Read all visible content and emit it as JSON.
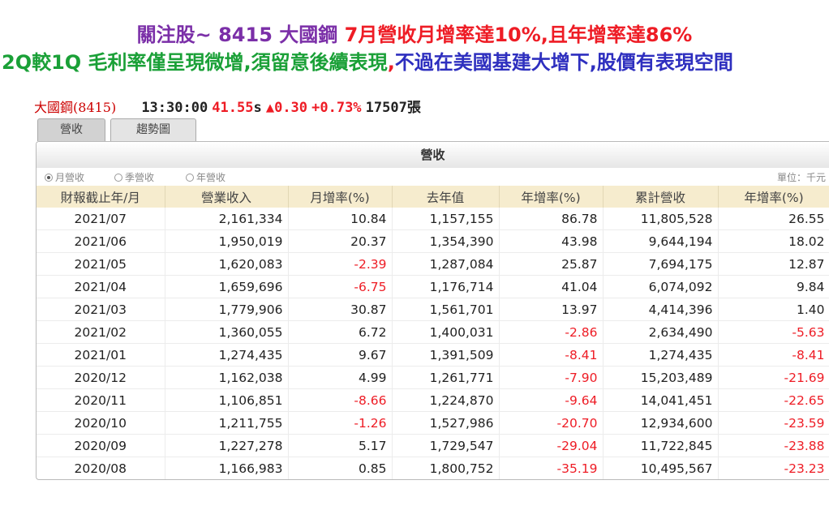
{
  "headline": {
    "line1": [
      {
        "text": "關注股~ 8415 大國鋼  ",
        "color": "purple"
      },
      {
        "text": "7月營收月增率達10%,且年增率達86%",
        "color": "red"
      }
    ],
    "line2": [
      {
        "text": "2Q較1Q 毛利率僅呈現微增,須留意後續表現",
        "color": "green"
      },
      {
        "text": ",",
        "color": "red"
      },
      {
        "text": "不過在美國基建大增下,股價有表現空間",
        "color": "blue"
      }
    ]
  },
  "quote": {
    "name": "大國鋼",
    "code": "(8415)",
    "time": "13:30:00",
    "price": "41.55",
    "price_flag": "s",
    "arrow": "▲",
    "change": "0.30",
    "change_pct": "+0.73%",
    "volume": "17507張"
  },
  "tabs": [
    {
      "label": "營收",
      "active": true
    },
    {
      "label": "趨勢圖",
      "active": false
    }
  ],
  "panel": {
    "title": "營收",
    "radio_options": [
      {
        "label": "月營收",
        "selected": true
      },
      {
        "label": "季營收",
        "selected": false
      },
      {
        "label": "年營收",
        "selected": false
      }
    ],
    "unit": "單位：千元"
  },
  "table": {
    "headers": [
      "財報截止年/月",
      "營業收入",
      "月增率(%)",
      "去年值",
      "年增率(%)",
      "累計營收",
      "年增率(%)"
    ],
    "rows": [
      [
        "2021/07",
        "2,161,334",
        "10.84",
        "1,157,155",
        "86.78",
        "11,805,528",
        "26.55"
      ],
      [
        "2021/06",
        "1,950,019",
        "20.37",
        "1,354,390",
        "43.98",
        "9,644,194",
        "18.02"
      ],
      [
        "2021/05",
        "1,620,083",
        "-2.39",
        "1,287,084",
        "25.87",
        "7,694,175",
        "12.87"
      ],
      [
        "2021/04",
        "1,659,696",
        "-6.75",
        "1,176,714",
        "41.04",
        "6,074,092",
        "9.84"
      ],
      [
        "2021/03",
        "1,779,906",
        "30.87",
        "1,561,701",
        "13.97",
        "4,414,396",
        "1.40"
      ],
      [
        "2021/02",
        "1,360,055",
        "6.72",
        "1,400,031",
        "-2.86",
        "2,634,490",
        "-5.63"
      ],
      [
        "2021/01",
        "1,274,435",
        "9.67",
        "1,391,509",
        "-8.41",
        "1,274,435",
        "-8.41"
      ],
      [
        "2020/12",
        "1,162,038",
        "4.99",
        "1,261,771",
        "-7.90",
        "15,203,489",
        "-21.69"
      ],
      [
        "2020/11",
        "1,106,851",
        "-8.66",
        "1,224,870",
        "-9.64",
        "14,041,451",
        "-22.65"
      ],
      [
        "2020/10",
        "1,211,755",
        "-1.26",
        "1,527,986",
        "-20.70",
        "12,934,600",
        "-23.59"
      ],
      [
        "2020/09",
        "1,227,278",
        "5.17",
        "1,729,547",
        "-29.04",
        "11,722,845",
        "-23.88"
      ],
      [
        "2020/08",
        "1,166,983",
        "0.85",
        "1,800,752",
        "-35.19",
        "10,495,567",
        "-23.23"
      ]
    ]
  }
}
